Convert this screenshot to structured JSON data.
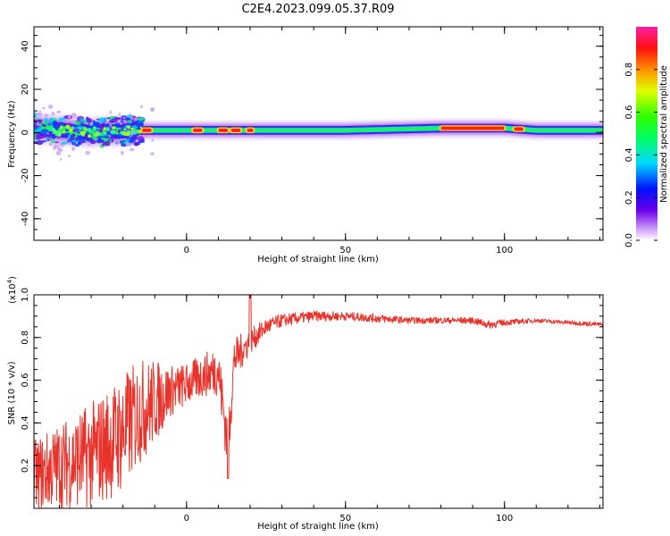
{
  "title": "C2E4.2023.099.05.37.R09",
  "chart_data": [
    {
      "type": "heatmap",
      "xlabel": "Height of straight line (km)",
      "ylabel": "Frequency (Hz)",
      "xlim": [
        -48,
        131
      ],
      "ylim": [
        -50,
        49
      ],
      "xticks": [
        0,
        50,
        100
      ],
      "xtick_labels": [
        "0",
        "50",
        "100"
      ],
      "yticks": [
        -40,
        -20,
        0,
        20,
        40
      ],
      "ytick_labels": [
        "-40",
        "-20",
        "0",
        "20",
        "40"
      ],
      "colorbar": {
        "label": "Normalized spectral amplitude",
        "colormap": "rainbow",
        "range": [
          0,
          1
        ],
        "ticks": [
          0.0,
          0.2,
          0.4,
          0.6,
          0.8
        ],
        "tick_labels": [
          "0.0",
          "0.2",
          "0.4",
          "0.6",
          "0.8"
        ]
      },
      "ridge": {
        "center_freq_hz": [
          [
            -48,
            2
          ],
          [
            -30,
            0
          ],
          [
            -15,
            1
          ],
          [
            0,
            1
          ],
          [
            50,
            1
          ],
          [
            80,
            2
          ],
          [
            100,
            2
          ],
          [
            110,
            1
          ],
          [
            131,
            1
          ]
        ],
        "strong_segments_km": [
          [
            -14,
            -11
          ],
          [
            2,
            5
          ],
          [
            10,
            13
          ],
          [
            14,
            17
          ],
          [
            19,
            21
          ],
          [
            80,
            100
          ],
          [
            103,
            106
          ]
        ]
      }
    },
    {
      "type": "line",
      "xlabel": "Height of straight line (km)",
      "ylabel": "SNR (10 * v/v)",
      "y_multiplier": "(x10",
      "y_multiplier_exp": "4",
      "y_multiplier_close": ")",
      "xlim": [
        -48,
        131
      ],
      "ylim": [
        0,
        1.0
      ],
      "xticks": [
        0,
        50,
        100
      ],
      "xtick_labels": [
        "0",
        "50",
        "100"
      ],
      "yticks": [
        0.2,
        0.4,
        0.6,
        0.8,
        1.0
      ],
      "ytick_labels": [
        "0.2",
        "0.4",
        "0.6",
        "0.8",
        "1.0"
      ],
      "color": "#e8322a",
      "series": [
        {
          "x": [
            -48,
            -40,
            -30,
            -20,
            -15,
            -10,
            -5,
            0,
            5,
            10,
            13,
            15,
            20,
            25,
            30,
            40,
            50,
            60,
            70,
            80,
            90,
            95,
            100,
            110,
            120,
            131
          ],
          "y": [
            0.15,
            0.2,
            0.25,
            0.35,
            0.45,
            0.5,
            0.55,
            0.58,
            0.62,
            0.65,
            0.3,
            0.7,
            0.78,
            0.85,
            0.88,
            0.9,
            0.9,
            0.89,
            0.88,
            0.88,
            0.88,
            0.86,
            0.87,
            0.88,
            0.87,
            0.86
          ],
          "noise_amplitude": [
            0.17,
            0.2,
            0.25,
            0.28,
            0.25,
            0.2,
            0.12,
            0.1,
            0.1,
            0.12,
            0.15,
            0.1,
            0.06,
            0.04,
            0.03,
            0.025,
            0.02,
            0.02,
            0.015,
            0.015,
            0.015,
            0.02,
            0.015,
            0.01,
            0.01,
            0.01
          ]
        }
      ]
    }
  ]
}
